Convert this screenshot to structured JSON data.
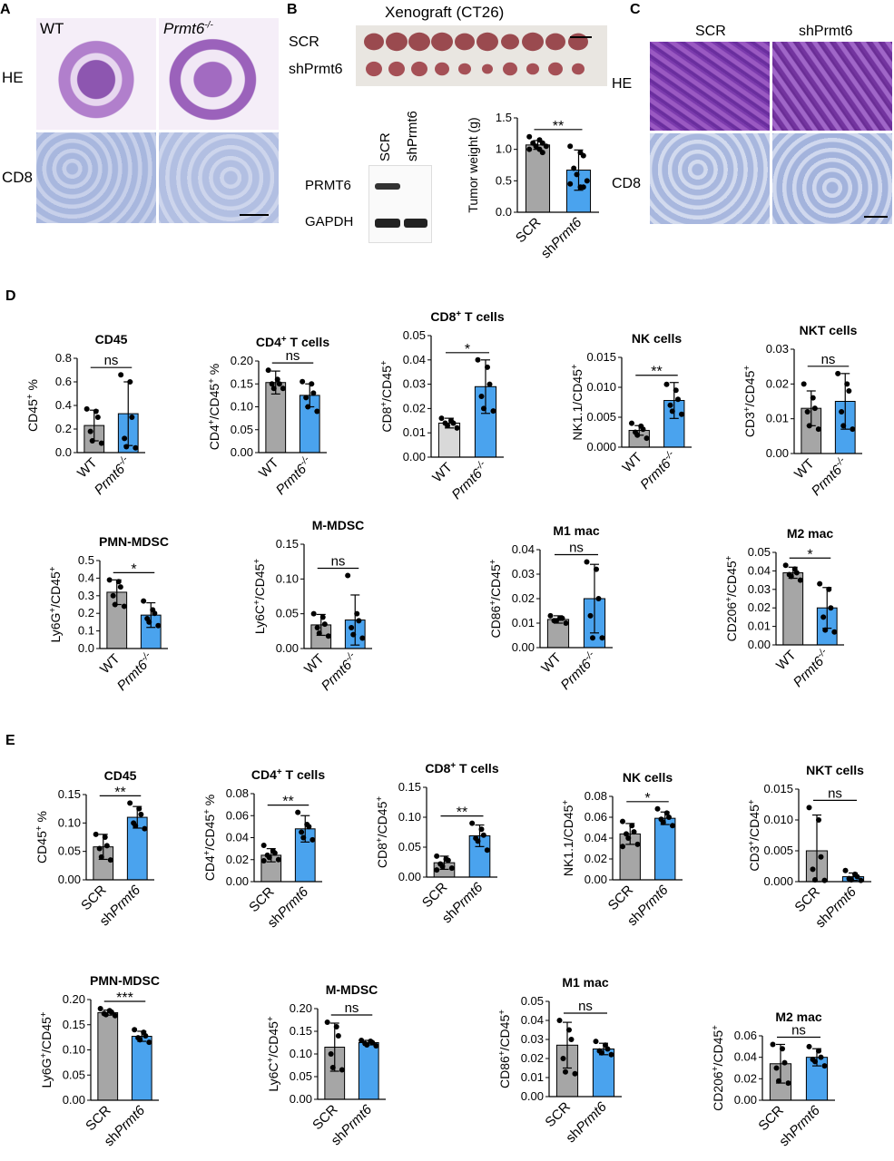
{
  "panel_letters": [
    "A",
    "B",
    "C",
    "D",
    "E"
  ],
  "panelA": {
    "col_wt": "WT",
    "col_ko": "Prmt6",
    "col_ko_sup": "-/-",
    "row_he": "HE",
    "row_cd8": "CD8"
  },
  "panelB": {
    "title": "Xenograft (CT26)",
    "row_scr": "SCR",
    "row_sh": "shPrmt6",
    "blot_cols": [
      "SCR",
      "shPrmt6"
    ],
    "blot_rows": [
      "PRMT6",
      "GAPDH"
    ]
  },
  "panelC": {
    "col_scr": "SCR",
    "col_sh": "shPrmt6",
    "row_he": "HE",
    "row_cd8": "CD8"
  },
  "colors": {
    "gray": "#a6a6a6",
    "lightgray": "#d9d9d9",
    "blue": "#4aa3ee",
    "he_purple": "#8d56b0",
    "ihc_blue": "#a8b7de"
  },
  "chart_data": [
    {
      "id": "b_weight",
      "type": "bar",
      "title": "",
      "ylabel": "Tumor weight (g)",
      "ylim": [
        0,
        1.5
      ],
      "yticks": [
        "0.0",
        "0.5",
        "1.0",
        "1.5"
      ],
      "categories": [
        "SCR",
        "shPrmt6"
      ],
      "values": [
        1.07,
        0.67
      ],
      "errors": [
        0.07,
        0.32
      ],
      "colors": [
        "gray",
        "blue"
      ],
      "sig": "**",
      "points": [
        [
          1.2,
          1.15,
          1.1,
          1.1,
          1.05,
          1.05,
          1.0,
          1.0,
          0.95
        ],
        [
          1.05,
          0.95,
          0.9,
          0.7,
          0.6,
          0.5,
          0.45,
          0.4,
          0.4
        ]
      ]
    },
    {
      "id": "d1",
      "type": "bar",
      "title": "CD45",
      "ylabel": "CD45+ %",
      "ylim": [
        0,
        0.8
      ],
      "yticks": [
        "0.0",
        "0.2",
        "0.4",
        "0.6",
        "0.8"
      ],
      "categories": [
        "WT",
        "Prmt6-/-"
      ],
      "values": [
        0.23,
        0.33
      ],
      "errors": [
        0.13,
        0.27
      ],
      "colors": [
        "gray",
        "blue"
      ],
      "sig": "ns",
      "points": [
        [
          0.37,
          0.35,
          0.3,
          0.18,
          0.1,
          0.08
        ],
        [
          0.66,
          0.6,
          0.3,
          0.12,
          0.05,
          0.04
        ]
      ]
    },
    {
      "id": "d2",
      "type": "bar",
      "title": "CD4+ T cells",
      "ylabel": "CD4+/CD45+ %",
      "ylim": [
        0,
        0.2
      ],
      "yticks": [
        "0.00",
        "0.05",
        "0.10",
        "0.15",
        "0.20"
      ],
      "categories": [
        "WT",
        "Prmt6-/-"
      ],
      "values": [
        0.153,
        0.125
      ],
      "errors": [
        0.025,
        0.025
      ],
      "colors": [
        "gray",
        "blue"
      ],
      "sig": "ns",
      "points": [
        [
          0.18,
          0.16,
          0.15,
          0.15,
          0.14,
          0.14
        ],
        [
          0.155,
          0.15,
          0.13,
          0.12,
          0.1,
          0.09
        ]
      ]
    },
    {
      "id": "d3",
      "type": "bar",
      "title": "CD8+ T cells",
      "ylabel": "CD8+/CD45+",
      "ylim": [
        0,
        0.05
      ],
      "yticks": [
        "0.00",
        "0.01",
        "0.02",
        "0.03",
        "0.04",
        "0.05"
      ],
      "categories": [
        "WT",
        "Prmt6-/-"
      ],
      "values": [
        0.014,
        0.029
      ],
      "errors": [
        0.002,
        0.011
      ],
      "colors": [
        "lightgray",
        "blue"
      ],
      "sig": "*",
      "points": [
        [
          0.016,
          0.015,
          0.014,
          0.014,
          0.013,
          0.012
        ],
        [
          0.04,
          0.037,
          0.03,
          0.025,
          0.02,
          0.019
        ]
      ]
    },
    {
      "id": "d4",
      "type": "bar",
      "title": "NK cells",
      "ylabel": "NK1.1/CD45+",
      "ylim": [
        0,
        0.015
      ],
      "yticks": [
        "0.000",
        "0.005",
        "0.010",
        "0.015"
      ],
      "categories": [
        "WT",
        "Prmt6-/-"
      ],
      "values": [
        0.0028,
        0.0078
      ],
      "errors": [
        0.0008,
        0.003
      ],
      "colors": [
        "gray",
        "blue"
      ],
      "sig": "**",
      "points": [
        [
          0.004,
          0.0035,
          0.003,
          0.0025,
          0.002,
          0.0015
        ],
        [
          0.0105,
          0.0095,
          0.008,
          0.007,
          0.006,
          0.0055
        ]
      ]
    },
    {
      "id": "d5",
      "type": "bar",
      "title": "NKT cells",
      "ylabel": "CD3+/CD45+",
      "ylim": [
        0,
        0.03
      ],
      "yticks": [
        "0.00",
        "0.01",
        "0.02",
        "0.03"
      ],
      "categories": [
        "WT",
        "Prmt6-/-"
      ],
      "values": [
        0.013,
        0.015
      ],
      "errors": [
        0.005,
        0.008
      ],
      "colors": [
        "gray",
        "blue"
      ],
      "sig": "ns",
      "points": [
        [
          0.02,
          0.016,
          0.013,
          0.012,
          0.008,
          0.007
        ],
        [
          0.023,
          0.02,
          0.018,
          0.012,
          0.008,
          0.007
        ]
      ]
    },
    {
      "id": "d6",
      "type": "bar",
      "title": "PMN-MDSC",
      "ylabel": "Ly6G+/CD45+",
      "ylim": [
        0,
        0.5
      ],
      "yticks": [
        "0.0",
        "0.1",
        "0.2",
        "0.3",
        "0.4",
        "0.5"
      ],
      "categories": [
        "WT",
        "Prmt6-/-"
      ],
      "values": [
        0.32,
        0.19
      ],
      "errors": [
        0.07,
        0.07
      ],
      "colors": [
        "gray",
        "blue"
      ],
      "sig": "*",
      "points": [
        [
          0.39,
          0.38,
          0.35,
          0.3,
          0.25,
          0.24
        ],
        [
          0.27,
          0.22,
          0.2,
          0.17,
          0.15,
          0.13
        ]
      ]
    },
    {
      "id": "d7",
      "type": "bar",
      "title": "M-MDSC",
      "ylabel": "Ly6C+/CD45+",
      "ylim": [
        0,
        0.15
      ],
      "yticks": [
        "0.00",
        "0.05",
        "0.10",
        "0.15"
      ],
      "categories": [
        "WT",
        "Prmt6-/-"
      ],
      "values": [
        0.034,
        0.041
      ],
      "errors": [
        0.015,
        0.036
      ],
      "colors": [
        "gray",
        "blue"
      ],
      "sig": "ns",
      "points": [
        [
          0.05,
          0.045,
          0.035,
          0.03,
          0.022,
          0.018
        ],
        [
          0.105,
          0.05,
          0.04,
          0.03,
          0.02,
          0.015
        ]
      ]
    },
    {
      "id": "d8",
      "type": "bar",
      "title": "M1 mac",
      "ylabel": "CD86+/CD45+",
      "ylim": [
        0,
        0.04
      ],
      "yticks": [
        "0.00",
        "0.01",
        "0.02",
        "0.03",
        "0.04"
      ],
      "categories": [
        "WT",
        "Prmt6-/-"
      ],
      "values": [
        0.0115,
        0.02
      ],
      "errors": [
        0.0015,
        0.014
      ],
      "colors": [
        "gray",
        "blue"
      ],
      "sig": "ns",
      "points": [
        [
          0.013,
          0.012,
          0.012,
          0.011,
          0.011,
          0.01
        ],
        [
          0.035,
          0.032,
          0.02,
          0.013,
          0.004,
          0.004
        ]
      ]
    },
    {
      "id": "d9",
      "type": "bar",
      "title": "M2 mac",
      "ylabel": "CD206+/CD45+",
      "ylim": [
        0,
        0.05
      ],
      "yticks": [
        "0.00",
        "0.01",
        "0.02",
        "0.03",
        "0.04",
        "0.05"
      ],
      "categories": [
        "WT",
        "Prmt6-/-"
      ],
      "values": [
        0.039,
        0.02
      ],
      "errors": [
        0.003,
        0.011
      ],
      "colors": [
        "gray",
        "blue"
      ],
      "sig": "*",
      "points": [
        [
          0.043,
          0.041,
          0.039,
          0.038,
          0.037,
          0.035
        ],
        [
          0.033,
          0.03,
          0.02,
          0.015,
          0.008,
          0.007
        ]
      ]
    },
    {
      "id": "e1",
      "type": "bar",
      "title": "CD45",
      "ylabel": "CD45+ %",
      "ylim": [
        0,
        0.15
      ],
      "yticks": [
        "0.00",
        "0.05",
        "0.10",
        "0.15"
      ],
      "categories": [
        "SCR",
        "shPrmt6"
      ],
      "values": [
        0.058,
        0.11
      ],
      "errors": [
        0.022,
        0.019
      ],
      "colors": [
        "gray",
        "blue"
      ],
      "sig": "**",
      "points": [
        [
          0.08,
          0.075,
          0.06,
          0.055,
          0.04,
          0.035
        ],
        [
          0.135,
          0.125,
          0.115,
          0.1,
          0.095,
          0.09
        ]
      ]
    },
    {
      "id": "e2",
      "type": "bar",
      "title": "CD4+ T cells",
      "ylabel": "CD4+/CD45+ %",
      "ylim": [
        0,
        0.08
      ],
      "yticks": [
        "0.00",
        "0.02",
        "0.04",
        "0.06",
        "0.08"
      ],
      "categories": [
        "SCR",
        "shPrmt6"
      ],
      "values": [
        0.024,
        0.048
      ],
      "errors": [
        0.006,
        0.012
      ],
      "colors": [
        "gray",
        "blue"
      ],
      "sig": "**",
      "points": [
        [
          0.033,
          0.028,
          0.026,
          0.024,
          0.022,
          0.02,
          0.019
        ],
        [
          0.063,
          0.052,
          0.05,
          0.045,
          0.04,
          0.038
        ]
      ]
    },
    {
      "id": "e3",
      "type": "bar",
      "title": "CD8+ T cells",
      "ylabel": "CD8+/CD45+",
      "ylim": [
        0,
        0.15
      ],
      "yticks": [
        "0.00",
        "0.05",
        "0.10",
        "0.15"
      ],
      "categories": [
        "SCR",
        "shPrmt6"
      ],
      "values": [
        0.024,
        0.069
      ],
      "errors": [
        0.011,
        0.018
      ],
      "colors": [
        "gray",
        "blue"
      ],
      "sig": "**",
      "points": [
        [
          0.035,
          0.03,
          0.028,
          0.022,
          0.018,
          0.015,
          0.012
        ],
        [
          0.09,
          0.08,
          0.07,
          0.065,
          0.06,
          0.045
        ]
      ]
    },
    {
      "id": "e4",
      "type": "bar",
      "title": "NK cells",
      "ylabel": "NK1.1/CD45+",
      "ylim": [
        0,
        0.08
      ],
      "yticks": [
        "0.00",
        "0.02",
        "0.04",
        "0.06",
        "0.08"
      ],
      "categories": [
        "SCR",
        "shPrmt6"
      ],
      "values": [
        0.044,
        0.059
      ],
      "errors": [
        0.01,
        0.006
      ],
      "colors": [
        "gray",
        "blue"
      ],
      "sig": "*",
      "points": [
        [
          0.056,
          0.052,
          0.046,
          0.044,
          0.04,
          0.034,
          0.032
        ],
        [
          0.068,
          0.064,
          0.06,
          0.058,
          0.055,
          0.052
        ]
      ]
    },
    {
      "id": "e5",
      "type": "bar",
      "title": "NKT cells",
      "ylabel": "CD3+/CD45+",
      "ylim": [
        0,
        0.015
      ],
      "yticks": [
        "0.000",
        "0.005",
        "0.010",
        "0.015"
      ],
      "categories": [
        "SCR",
        "shPrmt6"
      ],
      "values": [
        0.005,
        0.0008
      ],
      "errors": [
        0.0058,
        0.0006
      ],
      "colors": [
        "gray",
        "blue"
      ],
      "sig": "ns",
      "points": [
        [
          0.012,
          0.01,
          0.004,
          0.002,
          0.0003,
          0.0002
        ],
        [
          0.0018,
          0.0012,
          0.0008,
          0.0005,
          0.0003,
          0.0002
        ]
      ]
    },
    {
      "id": "e6",
      "type": "bar",
      "title": "PMN-MDSC",
      "ylabel": "Ly6G+/CD45+",
      "ylim": [
        0,
        0.2
      ],
      "yticks": [
        "0.00",
        "0.05",
        "0.10",
        "0.15",
        "0.20"
      ],
      "categories": [
        "SCR",
        "shPrmt6"
      ],
      "values": [
        0.174,
        0.127
      ],
      "errors": [
        0.005,
        0.01
      ],
      "colors": [
        "gray",
        "blue"
      ],
      "sig": "***",
      "points": [
        [
          0.182,
          0.178,
          0.175,
          0.172,
          0.17,
          0.168
        ],
        [
          0.14,
          0.135,
          0.128,
          0.124,
          0.12,
          0.115
        ]
      ]
    },
    {
      "id": "e7",
      "type": "bar",
      "title": "M-MDSC",
      "ylabel": "Ly6C+/CD45+",
      "ylim": [
        0,
        0.2
      ],
      "yticks": [
        "0.00",
        "0.05",
        "0.10",
        "0.15",
        "0.20"
      ],
      "categories": [
        "SCR",
        "shPrmt6"
      ],
      "values": [
        0.115,
        0.125
      ],
      "errors": [
        0.053,
        0.005
      ],
      "colors": [
        "gray",
        "blue"
      ],
      "sig": "ns",
      "points": [
        [
          0.17,
          0.16,
          0.14,
          0.1,
          0.07,
          0.065
        ],
        [
          0.13,
          0.128,
          0.125,
          0.123,
          0.12,
          0.118
        ]
      ]
    },
    {
      "id": "e8",
      "type": "bar",
      "title": "M1 mac",
      "ylabel": "CD86+/CD45+",
      "ylim": [
        0,
        0.05
      ],
      "yticks": [
        "0.00",
        "0.01",
        "0.02",
        "0.03",
        "0.04",
        "0.05"
      ],
      "categories": [
        "SCR",
        "shPrmt6"
      ],
      "values": [
        0.027,
        0.025
      ],
      "errors": [
        0.012,
        0.003
      ],
      "colors": [
        "gray",
        "blue"
      ],
      "sig": "ns",
      "points": [
        [
          0.04,
          0.035,
          0.03,
          0.02,
          0.013,
          0.012
        ],
        [
          0.029,
          0.027,
          0.025,
          0.024,
          0.023,
          0.022
        ]
      ]
    },
    {
      "id": "e9",
      "type": "bar",
      "title": "M2 mac",
      "ylabel": "CD206+/CD45+",
      "ylim": [
        0,
        0.06
      ],
      "yticks": [
        "0.00",
        "0.02",
        "0.04",
        "0.06"
      ],
      "categories": [
        "SCR",
        "shPrmt6"
      ],
      "values": [
        0.034,
        0.04
      ],
      "errors": [
        0.018,
        0.008
      ],
      "colors": [
        "gray",
        "blue"
      ],
      "sig": "ns",
      "points": [
        [
          0.052,
          0.048,
          0.035,
          0.03,
          0.018,
          0.016
        ],
        [
          0.05,
          0.046,
          0.04,
          0.038,
          0.036,
          0.032
        ]
      ]
    }
  ]
}
